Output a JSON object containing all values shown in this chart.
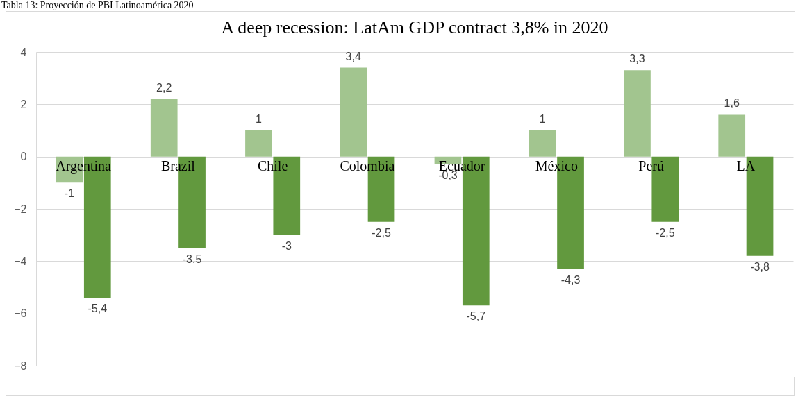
{
  "chart_data": {
    "type": "bar",
    "title": "A deep recession: LatAm GDP contract 3,8% in 2020",
    "annotations": [
      "Tabla 13: Proyección de PBI Latinoamérica 2020"
    ],
    "categories": [
      "Argentina",
      "Brazil",
      "Chile",
      "Colombia",
      "Ecuador",
      "México",
      "Perú",
      "LA"
    ],
    "series": [
      {
        "color": "#a2c58f",
        "values": [
          -1,
          2.2,
          1,
          3.4,
          -0.3,
          1,
          3.3,
          1.6
        ],
        "value_labels": [
          "-1",
          "2,2",
          "1",
          "3,4",
          "-0,3",
          "1",
          "3,3",
          "1,6"
        ]
      },
      {
        "color": "#62993e",
        "values": [
          -5.4,
          -3.5,
          -3,
          -2.5,
          -5.7,
          -4.3,
          -2.5,
          -3.8
        ],
        "value_labels": [
          "-5,4",
          "-3,5",
          "-3",
          "-2,5",
          "-5,7",
          "-4,3",
          "-2,5",
          "-3,8"
        ]
      }
    ],
    "ylim": [
      -8,
      4
    ],
    "yticks": [
      -8,
      -6,
      -4,
      -2,
      0,
      2,
      4
    ],
    "grid": "y",
    "legend": false
  }
}
